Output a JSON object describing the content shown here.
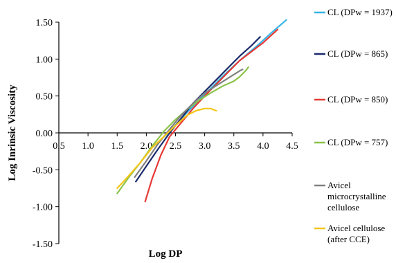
{
  "chart_data": {
    "type": "line",
    "title": "",
    "xlabel": "Log DP",
    "ylabel": "Log Inrinsic Viscosity",
    "xlim": [
      0.5,
      4.5
    ],
    "ylim": [
      -1.5,
      1.5
    ],
    "x_ticks": [
      "0.5",
      "1.0",
      "1.5",
      "2.0",
      "2.5",
      "3.0",
      "3.5",
      "4.0",
      "4.5"
    ],
    "y_ticks": [
      "1.50",
      "1.00",
      "0.50",
      "0.00",
      "-0.50",
      "-1.00",
      "-1.50"
    ],
    "grid": false,
    "legend_position": "right",
    "series": [
      {
        "name": "CL (DPw = 1937)",
        "name_lines": [
          "CL (DPw = 1937)"
        ],
        "color": "#33b5e5",
        "points": [
          [
            2.1,
            -0.2
          ],
          [
            2.4,
            0.02
          ],
          [
            2.7,
            0.28
          ],
          [
            3.0,
            0.52
          ],
          [
            3.3,
            0.76
          ],
          [
            3.6,
            0.98
          ],
          [
            3.9,
            1.18
          ],
          [
            4.15,
            1.36
          ],
          [
            4.4,
            1.53
          ]
        ]
      },
      {
        "name": "CL (DPw = 865)",
        "name_lines": [
          "CL (DPw = 865)"
        ],
        "color": "#1a2a6c",
        "points": [
          [
            1.82,
            -0.66
          ],
          [
            2.0,
            -0.45
          ],
          [
            2.2,
            -0.22
          ],
          [
            2.4,
            0.0
          ],
          [
            2.6,
            0.2
          ],
          [
            2.8,
            0.4
          ],
          [
            3.0,
            0.56
          ],
          [
            3.2,
            0.72
          ],
          [
            3.4,
            0.88
          ],
          [
            3.6,
            1.04
          ],
          [
            3.8,
            1.18
          ],
          [
            3.95,
            1.3
          ]
        ]
      },
      {
        "name": "CL (DPw = 850)",
        "name_lines": [
          "CL (DPw = 850)"
        ],
        "color": "#e53935",
        "points": [
          [
            1.98,
            -0.93
          ],
          [
            2.1,
            -0.62
          ],
          [
            2.25,
            -0.3
          ],
          [
            2.4,
            -0.05
          ],
          [
            2.6,
            0.14
          ],
          [
            2.8,
            0.33
          ],
          [
            3.0,
            0.5
          ],
          [
            3.2,
            0.66
          ],
          [
            3.4,
            0.82
          ],
          [
            3.6,
            0.98
          ],
          [
            3.8,
            1.1
          ],
          [
            4.0,
            1.22
          ],
          [
            4.25,
            1.4
          ]
        ]
      },
      {
        "name": "CL (DPw = 757)",
        "name_lines": [
          "CL (DPw = 757)"
        ],
        "color": "#8bc34a",
        "points": [
          [
            1.5,
            -0.82
          ],
          [
            1.7,
            -0.6
          ],
          [
            1.9,
            -0.4
          ],
          [
            2.1,
            -0.18
          ],
          [
            2.3,
            0.02
          ],
          [
            2.5,
            0.18
          ],
          [
            2.7,
            0.32
          ],
          [
            2.9,
            0.44
          ],
          [
            3.1,
            0.54
          ],
          [
            3.3,
            0.63
          ],
          [
            3.5,
            0.7
          ],
          [
            3.6,
            0.76
          ],
          [
            3.7,
            0.84
          ],
          [
            3.75,
            0.89
          ]
        ]
      },
      {
        "name": "Avicel microcrystalline cellulose",
        "name_lines": [
          "Avicel",
          "microcrystalline",
          "cellulose"
        ],
        "color": "#808080",
        "points": [
          [
            1.8,
            -0.6
          ],
          [
            2.0,
            -0.38
          ],
          [
            2.2,
            -0.15
          ],
          [
            2.4,
            0.05
          ],
          [
            2.6,
            0.24
          ],
          [
            2.8,
            0.4
          ],
          [
            3.0,
            0.54
          ],
          [
            3.2,
            0.64
          ],
          [
            3.4,
            0.74
          ],
          [
            3.6,
            0.84
          ],
          [
            3.65,
            0.86
          ]
        ]
      },
      {
        "name": "Avicel cellulose (after CCE)",
        "name_lines": [
          "Avicel cellulose",
          "(after CCE)"
        ],
        "color": "#f5c518",
        "points": [
          [
            1.5,
            -0.75
          ],
          [
            1.7,
            -0.58
          ],
          [
            1.9,
            -0.4
          ],
          [
            2.1,
            -0.2
          ],
          [
            2.3,
            -0.05
          ],
          [
            2.5,
            0.1
          ],
          [
            2.7,
            0.24
          ],
          [
            2.85,
            0.3
          ],
          [
            3.0,
            0.33
          ],
          [
            3.1,
            0.33
          ],
          [
            3.2,
            0.3
          ]
        ]
      }
    ]
  }
}
